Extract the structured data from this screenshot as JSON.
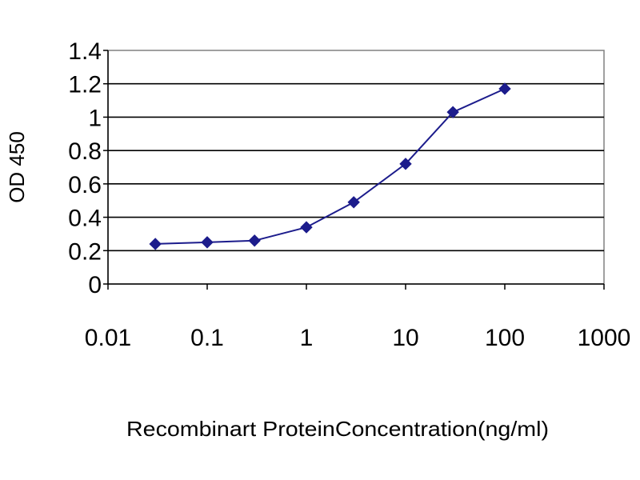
{
  "chart_data": {
    "type": "line",
    "title": "",
    "xlabel": "Recombinart ProteinConcentration(ng/ml)",
    "ylabel": "OD 450",
    "x_scale": "log",
    "xlim": [
      0.01,
      1000
    ],
    "ylim": [
      0,
      1.4
    ],
    "x_ticks": [
      "0.01",
      "0.1",
      "1",
      "10",
      "100",
      "1000"
    ],
    "y_ticks": [
      "0",
      "0.2",
      "0.4",
      "0.6",
      "0.8",
      "1",
      "1.2",
      "1.4"
    ],
    "grid": "horizontal",
    "legend": "none",
    "series": [
      {
        "color": "#1c1c8c",
        "x": [
          0.03,
          0.1,
          0.3,
          1,
          3,
          10,
          30,
          100
        ],
        "y": [
          0.24,
          0.25,
          0.26,
          0.34,
          0.49,
          0.72,
          1.03,
          1.17
        ]
      }
    ]
  }
}
